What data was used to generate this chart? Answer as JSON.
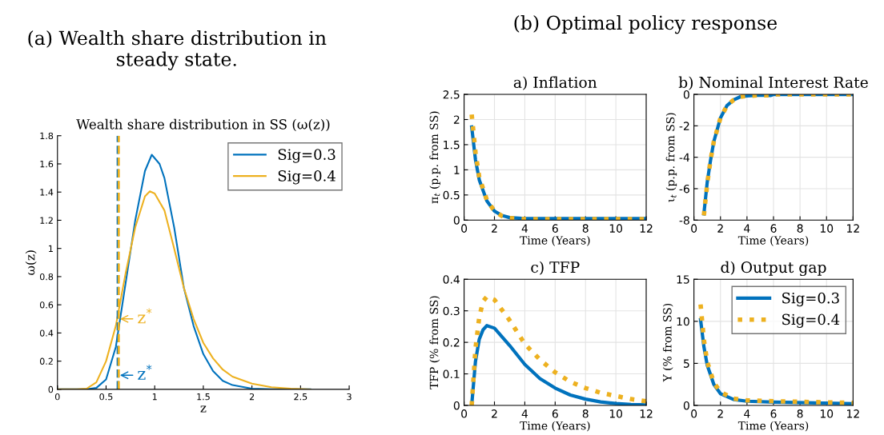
{
  "chart_data": [
    {
      "type": "line",
      "subtitle": "(a) Wealth share distribution in steady state.",
      "title": "Wealth share distribution in SS (ω(z))",
      "xlabel": "z",
      "ylabel": "ω(z)",
      "xlim": [
        0,
        3
      ],
      "xticks": [
        0,
        0.5,
        1,
        1.5,
        2,
        2.5,
        3
      ],
      "ylim": [
        0,
        1.8
      ],
      "yticks": [
        0,
        0.2,
        0.4,
        0.6,
        0.8,
        1,
        1.2,
        1.4,
        1.6,
        1.8
      ],
      "grid": false,
      "legend": "top right",
      "marker": "none",
      "series": [
        {
          "name": "Sig=0.3",
          "color": "#0072bd",
          "line_style": "solid",
          "x": [
            0,
            0.3,
            0.4,
            0.5,
            0.6,
            0.7,
            0.8,
            0.9,
            0.97,
            1.05,
            1.1,
            1.2,
            1.3,
            1.4,
            1.5,
            1.6,
            1.7,
            1.8,
            2.0,
            2.2,
            2.6
          ],
          "values": [
            0,
            0,
            0.01,
            0.07,
            0.3,
            0.75,
            1.2,
            1.55,
            1.665,
            1.6,
            1.5,
            1.15,
            0.72,
            0.45,
            0.25,
            0.13,
            0.06,
            0.03,
            0.005,
            0.001,
            0
          ]
        },
        {
          "name": "Sig=0.4",
          "color": "#edb120",
          "line_style": "solid",
          "x": [
            0,
            0.2,
            0.3,
            0.4,
            0.5,
            0.6,
            0.7,
            0.8,
            0.9,
            0.95,
            1.0,
            1.1,
            1.2,
            1.3,
            1.4,
            1.5,
            1.6,
            1.7,
            1.8,
            2.0,
            2.2,
            2.4,
            2.6
          ],
          "values": [
            0,
            0,
            0.005,
            0.05,
            0.2,
            0.45,
            0.82,
            1.15,
            1.37,
            1.405,
            1.39,
            1.27,
            1.0,
            0.72,
            0.5,
            0.33,
            0.22,
            0.14,
            0.09,
            0.04,
            0.015,
            0.005,
            0
          ]
        }
      ],
      "ref_lines": [
        {
          "axis": "x",
          "value": 0.62,
          "color": "#0072bd",
          "line_style": "dashed"
        },
        {
          "axis": "x",
          "value": 0.63,
          "color": "#edb120",
          "line_style": "dashed"
        }
      ],
      "annotations": [
        {
          "text": "z$^{*}$",
          "x": 0.62,
          "y": 0.1
        },
        {
          "text": "z$^{*}$",
          "x": 0.62,
          "y": 0.5
        }
      ]
    },
    {
      "type": "line",
      "subtitle": "(b) Optimal policy response",
      "title": "a) Inflation",
      "xlabel": "Time (Years)",
      "ylabel": "π$_{t}$ (p.p. from SS)",
      "xlim": [
        0,
        12
      ],
      "xticks": [
        0,
        2,
        4,
        6,
        8,
        10,
        12
      ],
      "ylim": [
        0,
        2.5
      ],
      "yticks": [
        0,
        0.5,
        1,
        1.5,
        2,
        2.5
      ],
      "grid": true,
      "marker": "none",
      "series": [
        {
          "color": "#0072bd",
          "line_style": "solid",
          "x": [
            0.5,
            0.75,
            1,
            1.5,
            2,
            2.5,
            3,
            4,
            6,
            12
          ],
          "values": [
            1.85,
            1.2,
            0.8,
            0.38,
            0.18,
            0.09,
            0.05,
            0.03,
            0.03,
            0.03
          ]
        },
        {
          "color": "#edb120",
          "line_style": "dotted",
          "x": [
            0.5,
            0.75,
            1,
            1.5,
            2,
            2.5,
            3,
            4,
            6,
            12
          ],
          "values": [
            2.1,
            1.35,
            0.85,
            0.4,
            0.18,
            0.08,
            0.04,
            0.02,
            0.02,
            0.02
          ]
        }
      ]
    },
    {
      "type": "line",
      "title": "b) Nominal Interest Rate",
      "xlabel": "Time (Years)",
      "ylabel": "ι$_{t}$ (p.p. from SS)",
      "xlim": [
        0,
        12
      ],
      "xticks": [
        0,
        2,
        4,
        6,
        8,
        10,
        12
      ],
      "ylim": [
        -8,
        0
      ],
      "yticks": [
        -8,
        -6,
        -4,
        -2,
        0
      ],
      "grid": true,
      "marker": "none",
      "series": [
        {
          "color": "#0072bd",
          "line_style": "solid",
          "x": [
            0.75,
            1,
            1.25,
            1.5,
            2,
            2.5,
            3,
            3.5,
            4,
            5,
            5.8,
            6,
            12
          ],
          "values": [
            -7.6,
            -5.6,
            -4.2,
            -3,
            -1.5,
            -0.7,
            -0.35,
            -0.15,
            -0.1,
            -0.05,
            -0.07,
            0,
            0
          ]
        },
        {
          "color": "#edb120",
          "line_style": "dotted",
          "x": [
            0.75,
            1,
            1.25,
            1.5,
            2,
            2.5,
            3,
            3.5,
            4,
            5,
            5.8,
            6,
            12
          ],
          "values": [
            -7.7,
            -5.7,
            -4.2,
            -3,
            -1.5,
            -0.7,
            -0.35,
            -0.15,
            -0.1,
            -0.05,
            -0.07,
            0,
            0
          ]
        }
      ]
    },
    {
      "type": "line",
      "title": "c) TFP",
      "xlabel": "Time (Years)",
      "ylabel": "TFP (% from SS)",
      "xlim": [
        0,
        12
      ],
      "xticks": [
        0,
        2,
        4,
        6,
        8,
        10,
        12
      ],
      "ylim": [
        0,
        0.4
      ],
      "yticks": [
        0,
        0.1,
        0.2,
        0.3,
        0.4
      ],
      "grid": true,
      "marker": "none",
      "series": [
        {
          "color": "#0072bd",
          "line_style": "solid",
          "x": [
            0.5,
            0.75,
            1,
            1.25,
            1.5,
            2,
            3,
            4,
            5,
            6,
            7,
            8,
            9,
            10,
            11,
            12
          ],
          "values": [
            0,
            0.14,
            0.21,
            0.24,
            0.253,
            0.245,
            0.19,
            0.13,
            0.085,
            0.055,
            0.033,
            0.02,
            0.011,
            0.006,
            0.003,
            0.002
          ]
        },
        {
          "color": "#edb120",
          "line_style": "dotted",
          "x": [
            0.5,
            0.75,
            1,
            1.25,
            1.5,
            2,
            3,
            4,
            5,
            6,
            7,
            8,
            9,
            10,
            11,
            12
          ],
          "values": [
            0,
            0.18,
            0.28,
            0.33,
            0.345,
            0.335,
            0.27,
            0.195,
            0.145,
            0.105,
            0.075,
            0.055,
            0.04,
            0.03,
            0.02,
            0.013
          ]
        }
      ]
    },
    {
      "type": "line",
      "title": "d) Output gap",
      "xlabel": "Time (Years)",
      "ylabel": "Y (% from SS)",
      "xlim": [
        0,
        12
      ],
      "xticks": [
        0,
        2,
        4,
        6,
        8,
        10,
        12
      ],
      "ylim": [
        0,
        15
      ],
      "yticks": [
        0,
        5,
        10,
        15
      ],
      "grid": true,
      "legend": "top right",
      "marker": "none",
      "series": [
        {
          "name": "Sig=0.3",
          "color": "#0072bd",
          "line_style": "solid",
          "x": [
            0.5,
            0.75,
            1,
            1.5,
            2,
            3,
            4,
            6,
            12
          ],
          "values": [
            10.2,
            7,
            4.8,
            2.5,
            1.4,
            0.7,
            0.5,
            0.4,
            0.2
          ]
        },
        {
          "name": "Sig=0.4",
          "color": "#edb120",
          "line_style": "dotted",
          "x": [
            0.5,
            0.75,
            1,
            1.5,
            2,
            3,
            4,
            6,
            12
          ],
          "values": [
            12,
            7.8,
            5.2,
            2.7,
            1.6,
            0.8,
            0.6,
            0.5,
            0.3
          ]
        }
      ]
    }
  ]
}
